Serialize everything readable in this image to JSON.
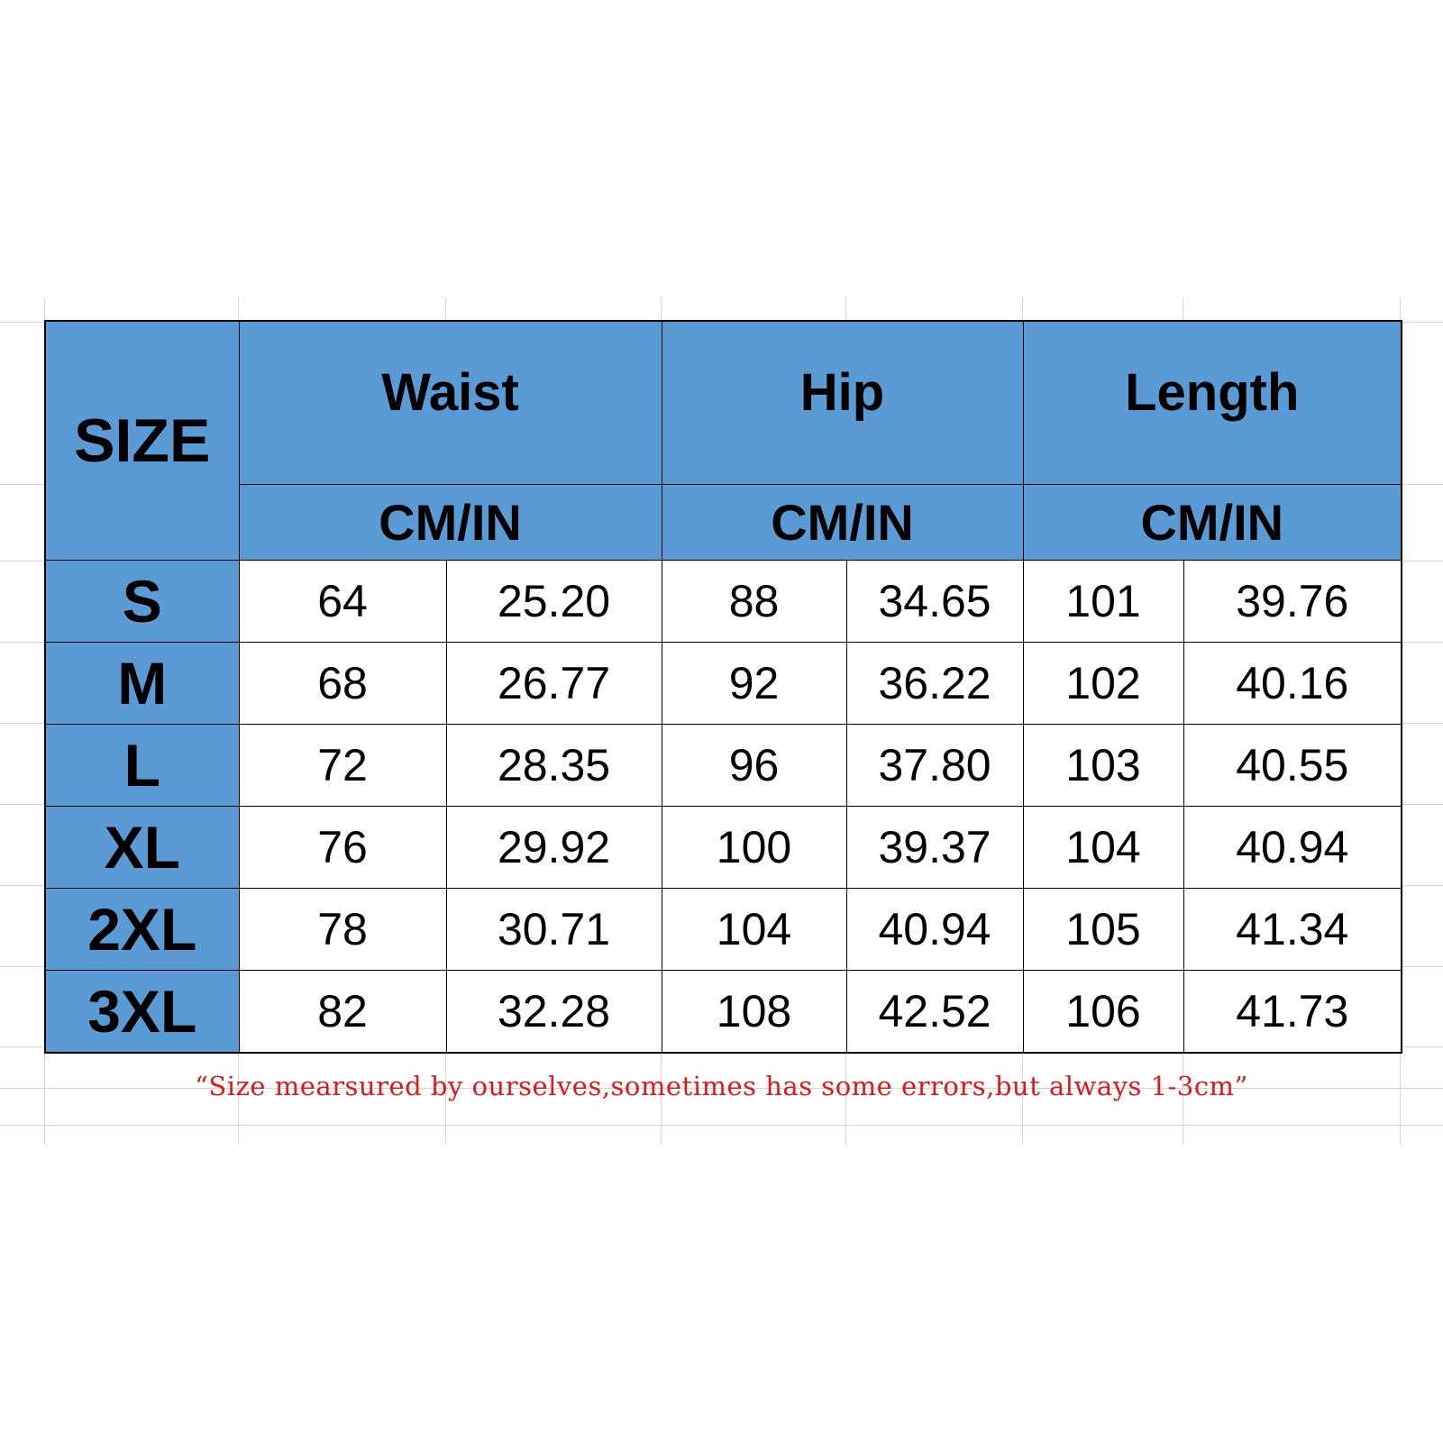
{
  "table": {
    "size_header": "SIZE",
    "groups": [
      {
        "label": "Waist",
        "unit": "CM/IN"
      },
      {
        "label": "Hip",
        "unit": "CM/IN"
      },
      {
        "label": "Length",
        "unit": "CM/IN"
      }
    ],
    "rows": [
      {
        "size": "S",
        "values": [
          "64",
          "25.20",
          "88",
          "34.65",
          "101",
          "39.76"
        ]
      },
      {
        "size": "M",
        "values": [
          "68",
          "26.77",
          "92",
          "36.22",
          "102",
          "40.16"
        ]
      },
      {
        "size": "L",
        "values": [
          "72",
          "28.35",
          "96",
          "37.80",
          "103",
          "40.55"
        ]
      },
      {
        "size": "XL",
        "values": [
          "76",
          "29.92",
          "100",
          "39.37",
          "104",
          "40.94"
        ]
      },
      {
        "size": "2XL",
        "values": [
          "78",
          "30.71",
          "104",
          "40.94",
          "105",
          "41.34"
        ]
      },
      {
        "size": "3XL",
        "values": [
          "82",
          "32.28",
          "108",
          "42.52",
          "106",
          "41.73"
        ]
      }
    ]
  },
  "note": "“Size mearsured by ourselves,sometimes has some errors,but always 1-3cm”",
  "colors": {
    "header_fill": "#5b9bd5",
    "note_text": "#e0181a"
  }
}
